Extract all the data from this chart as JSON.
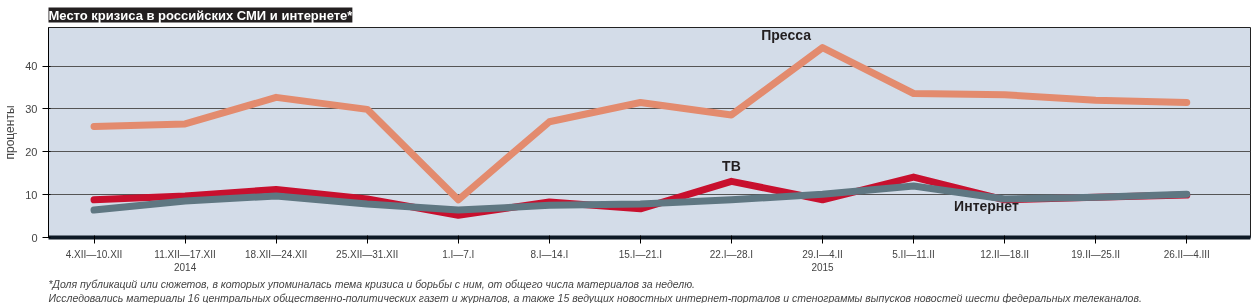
{
  "chart_data": {
    "type": "line",
    "title": "Место кризиса в российских СМИ и интернете*",
    "ylabel": "проценты",
    "categories": [
      "4.XII—10.XII",
      "11.XII—17.XII\n2014",
      "18.XII—24.XII",
      "25.XII—31.XII",
      "1.I—7.I",
      "8.I—14.I",
      "15.I—21.I",
      "22.I—28.I",
      "29.I—4.II\n2015",
      "5.II—11.II",
      "12.II—18.II",
      "19.II—25.II",
      "26.II—4.III"
    ],
    "series": [
      {
        "name": "Пресса",
        "color": "#e38b6e",
        "values": [
          25.9,
          26.5,
          32.7,
          29.9,
          8.8,
          27,
          31.5,
          28.6,
          44.3,
          33.6,
          33.3,
          32,
          31.5
        ]
      },
      {
        "name": "ТВ",
        "color": "#c8102e",
        "values": [
          8.8,
          9.7,
          11.2,
          9,
          5.2,
          8.3,
          6.7,
          13.1,
          8.8,
          14.1,
          8.8,
          9.4,
          9.9
        ]
      },
      {
        "name": "Интернет",
        "color": "#5f7782",
        "values": [
          6.4,
          8.5,
          9.7,
          7.8,
          6.4,
          7.5,
          7.8,
          8.8,
          10.1,
          12,
          9,
          9.4,
          10.1
        ]
      }
    ],
    "ylim": [
      0,
      49
    ],
    "yticks": [
      0,
      10,
      20,
      30,
      40
    ],
    "grid": "y",
    "marker": "none",
    "line_style": "solid",
    "annotations": [
      "*Доля публикаций или сюжетов, в которых упоминалась тема кризиса и борьбы с ним, от общего числа материалов за неделю.",
      "Исследовались материалы 16 центральных общественно-политических газет и журналов, а также 15 ведущих новостных интернет-порталов и стенограммы выпусков новостей шести федеральных телеканалов."
    ]
  }
}
